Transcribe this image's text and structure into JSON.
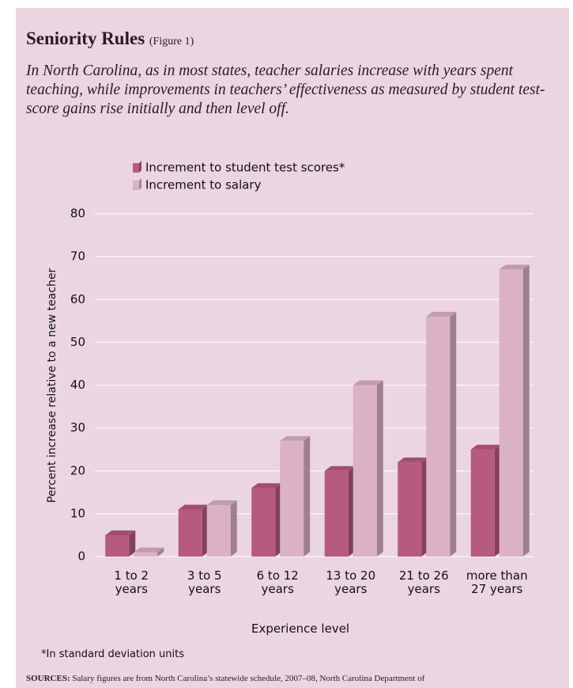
{
  "chart_data": {
    "type": "bar",
    "title": "Seniority Rules",
    "figure_label": "(Figure 1)",
    "subtitle": "In North Carolina, as in most states, teacher salaries increase with years spent teaching, while improvements in teachers’ effectiveness as measured by student test-score gains rise initially and then level off.",
    "categories": [
      "1 to 2\nyears",
      "3 to 5\nyears",
      "6 to 12\nyears",
      "13 to 20\nyears",
      "21 to 26\nyears",
      "more than\n27 years"
    ],
    "series": [
      {
        "name": "Increment to student test scores*",
        "color": "#b65a80",
        "values": [
          5,
          11,
          16,
          20,
          22,
          25
        ]
      },
      {
        "name": "Increment to salary",
        "color": "#dbb1c5",
        "values": [
          1,
          12,
          27,
          40,
          56,
          67
        ]
      }
    ],
    "ylim": [
      0,
      80
    ],
    "yticks": [
      0,
      10,
      20,
      30,
      40,
      50,
      60,
      70,
      80
    ],
    "grid": true,
    "ylabel": "Percent increase relative to a new teacher",
    "xlabel": "Experience level",
    "footnote": "*In standard deviation units",
    "sources_label": "SOURCES:",
    "sources": "Salary figures are from North Carolina’s statewide schedule, 2007–08, North Carolina Department of"
  }
}
